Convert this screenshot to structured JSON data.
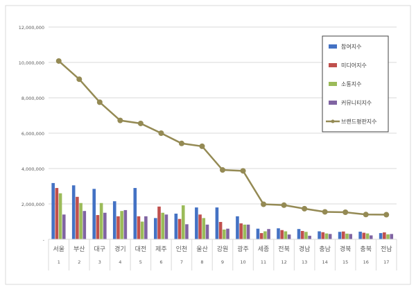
{
  "chart_data": {
    "type": "bar",
    "title": "",
    "xlabel": "",
    "ylabel": "",
    "ylim": [
      0,
      12000000
    ],
    "yticks": [
      "-",
      "2,000,000",
      "4,000,000",
      "6,000,000",
      "8,000,000",
      "10,000,000",
      "12,000,000"
    ],
    "grid": true,
    "legend_position": "top-right",
    "categories": [
      "서울",
      "부산",
      "대구",
      "경기",
      "대전",
      "제주",
      "인천",
      "울산",
      "강원",
      "광주",
      "세종",
      "전북",
      "경남",
      "충남",
      "경북",
      "충북",
      "전남"
    ],
    "ranks": [
      "1",
      "2",
      "3",
      "4",
      "5",
      "6",
      "7",
      "8",
      "9",
      "10",
      "11",
      "12",
      "13",
      "14",
      "15",
      "16",
      "17"
    ],
    "series": [
      {
        "name": "참여지수",
        "type": "bar",
        "color": "#4472C4",
        "values": [
          3180000,
          3050000,
          2850000,
          2150000,
          2900000,
          1200000,
          1450000,
          1800000,
          1800000,
          1300000,
          600000,
          620000,
          580000,
          450000,
          420000,
          430000,
          350000
        ]
      },
      {
        "name": "미디어지수",
        "type": "bar",
        "color": "#C0504D",
        "values": [
          2900000,
          2400000,
          1370000,
          1300000,
          1300000,
          1850000,
          1150000,
          1400000,
          980000,
          900000,
          350000,
          520000,
          470000,
          400000,
          440000,
          370000,
          390000
        ]
      },
      {
        "name": "소통지수",
        "type": "bar",
        "color": "#9BBB59",
        "values": [
          2600000,
          2050000,
          2050000,
          1600000,
          1000000,
          1500000,
          1920000,
          1200000,
          550000,
          830000,
          450000,
          450000,
          420000,
          330000,
          320000,
          330000,
          280000
        ]
      },
      {
        "name": "커뮤니티지수",
        "type": "bar",
        "color": "#8064A2",
        "values": [
          1400000,
          1600000,
          1500000,
          1650000,
          1300000,
          1400000,
          850000,
          830000,
          600000,
          830000,
          580000,
          270000,
          200000,
          300000,
          300000,
          220000,
          300000
        ]
      },
      {
        "name": "브랜드평판지수",
        "type": "line",
        "color": "#948A54",
        "values": [
          10080000,
          9050000,
          7750000,
          6720000,
          6550000,
          6000000,
          5420000,
          5260000,
          3920000,
          3870000,
          1980000,
          1930000,
          1730000,
          1550000,
          1530000,
          1400000,
          1390000
        ]
      }
    ]
  }
}
